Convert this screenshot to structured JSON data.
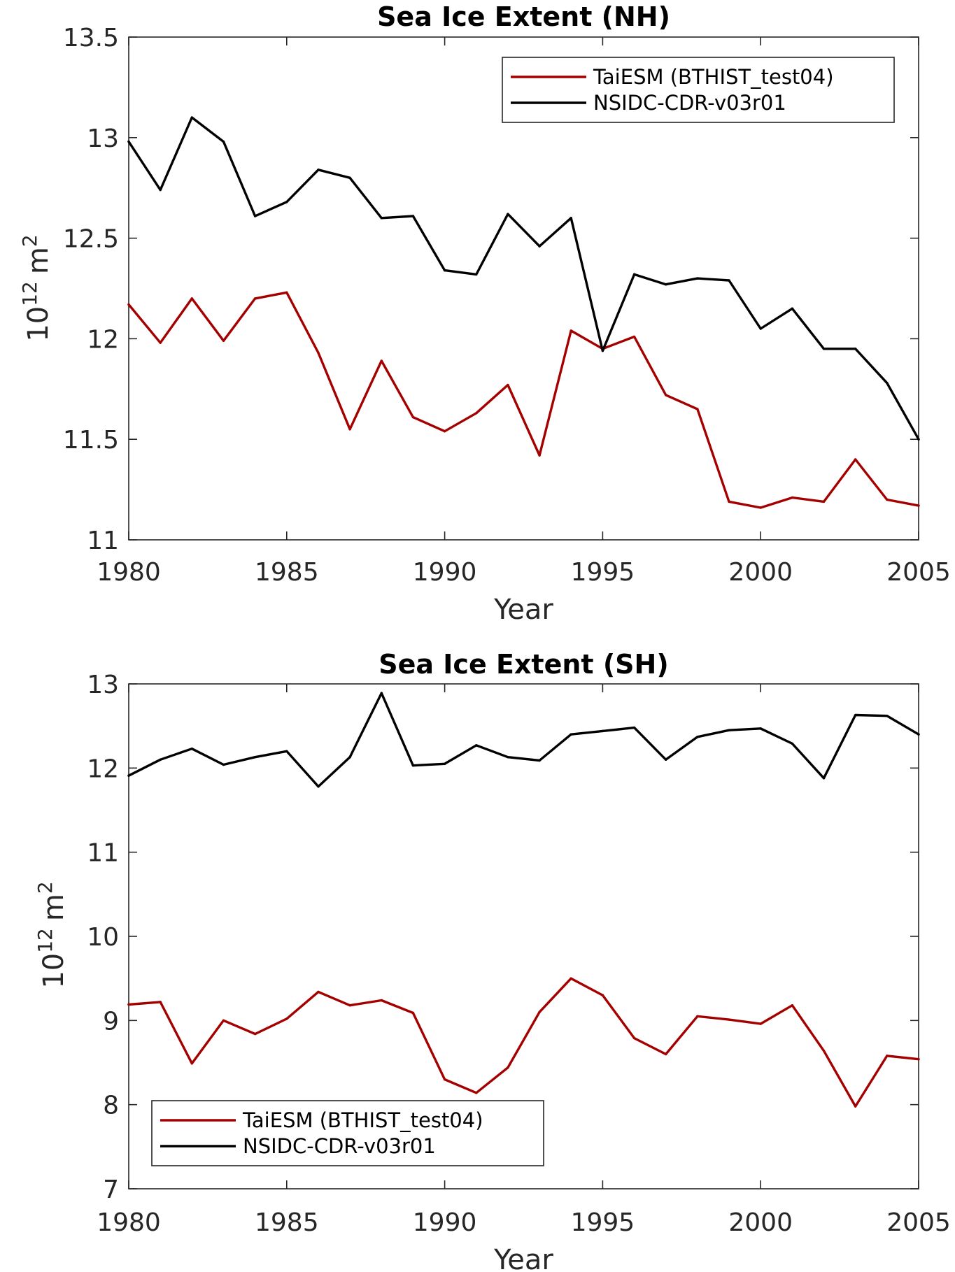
{
  "chart_data": [
    {
      "type": "line",
      "title": "Sea Ice Extent (NH)",
      "xlabel": "Year",
      "ylabel": "10^12 m^2",
      "ylabel_base": "10",
      "ylabel_exp": "12",
      "ylabel_unit": "m",
      "ylabel_unit_exp": "2",
      "xlim": [
        1980,
        2005
      ],
      "ylim": [
        11,
        13.5
      ],
      "xticks": [
        1980,
        1985,
        1990,
        1995,
        2000,
        2005
      ],
      "yticks": [
        11,
        11.5,
        12,
        12.5,
        13,
        13.5
      ],
      "ytick_labels": [
        "11",
        "11.5",
        "12",
        "12.5",
        "13",
        "13.5"
      ],
      "grid": false,
      "legend_position": "top-right",
      "x": [
        1980,
        1981,
        1982,
        1983,
        1984,
        1985,
        1986,
        1987,
        1988,
        1989,
        1990,
        1991,
        1992,
        1993,
        1994,
        1995,
        1996,
        1997,
        1998,
        1999,
        2000,
        2001,
        2002,
        2003,
        2004,
        2005
      ],
      "series": [
        {
          "name": "TaiESM (BTHIST_test04)",
          "color": "#a50000",
          "values": [
            12.17,
            11.98,
            12.2,
            11.99,
            12.2,
            12.23,
            11.93,
            11.55,
            11.89,
            11.61,
            11.54,
            11.63,
            11.77,
            11.42,
            12.04,
            11.95,
            12.01,
            11.72,
            11.65,
            11.19,
            11.16,
            11.21,
            11.19,
            11.4,
            11.2,
            11.17
          ]
        },
        {
          "name": "NSIDC-CDR-v03r01",
          "color": "#000000",
          "values": [
            12.98,
            12.74,
            13.1,
            12.98,
            12.61,
            12.68,
            12.84,
            12.8,
            12.6,
            12.61,
            12.34,
            12.32,
            12.62,
            12.46,
            12.6,
            11.94,
            12.32,
            12.27,
            12.3,
            12.29,
            12.05,
            12.15,
            11.95,
            11.95,
            11.78,
            11.5
          ]
        }
      ]
    },
    {
      "type": "line",
      "title": "Sea Ice Extent (SH)",
      "xlabel": "Year",
      "ylabel": "10^12 m^2",
      "ylabel_base": "10",
      "ylabel_exp": "12",
      "ylabel_unit": "m",
      "ylabel_unit_exp": "2",
      "xlim": [
        1980,
        2005
      ],
      "ylim": [
        7,
        13
      ],
      "xticks": [
        1980,
        1985,
        1990,
        1995,
        2000,
        2005
      ],
      "yticks": [
        7,
        8,
        9,
        10,
        11,
        12,
        13
      ],
      "ytick_labels": [
        "7",
        "8",
        "9",
        "10",
        "11",
        "12",
        "13"
      ],
      "grid": false,
      "legend_position": "bottom-left",
      "x": [
        1980,
        1981,
        1982,
        1983,
        1984,
        1985,
        1986,
        1987,
        1988,
        1989,
        1990,
        1991,
        1992,
        1993,
        1994,
        1995,
        1996,
        1997,
        1998,
        1999,
        2000,
        2001,
        2002,
        2003,
        2004,
        2005
      ],
      "series": [
        {
          "name": "TaiESM (BTHIST_test04)",
          "color": "#a50000",
          "values": [
            9.19,
            9.22,
            8.49,
            9.0,
            8.84,
            9.02,
            9.34,
            9.18,
            9.24,
            9.09,
            8.3,
            8.14,
            8.44,
            9.1,
            9.5,
            9.3,
            8.79,
            8.6,
            9.05,
            9.01,
            8.96,
            9.18,
            8.64,
            7.98,
            8.58,
            8.54
          ]
        },
        {
          "name": "NSIDC-CDR-v03r01",
          "color": "#000000",
          "values": [
            11.91,
            12.1,
            12.23,
            12.04,
            12.13,
            12.2,
            11.78,
            12.13,
            12.89,
            12.03,
            12.05,
            12.27,
            12.13,
            12.09,
            12.4,
            12.44,
            12.48,
            12.1,
            12.37,
            12.45,
            12.47,
            12.29,
            11.88,
            12.63,
            12.62,
            12.4
          ]
        }
      ]
    }
  ]
}
